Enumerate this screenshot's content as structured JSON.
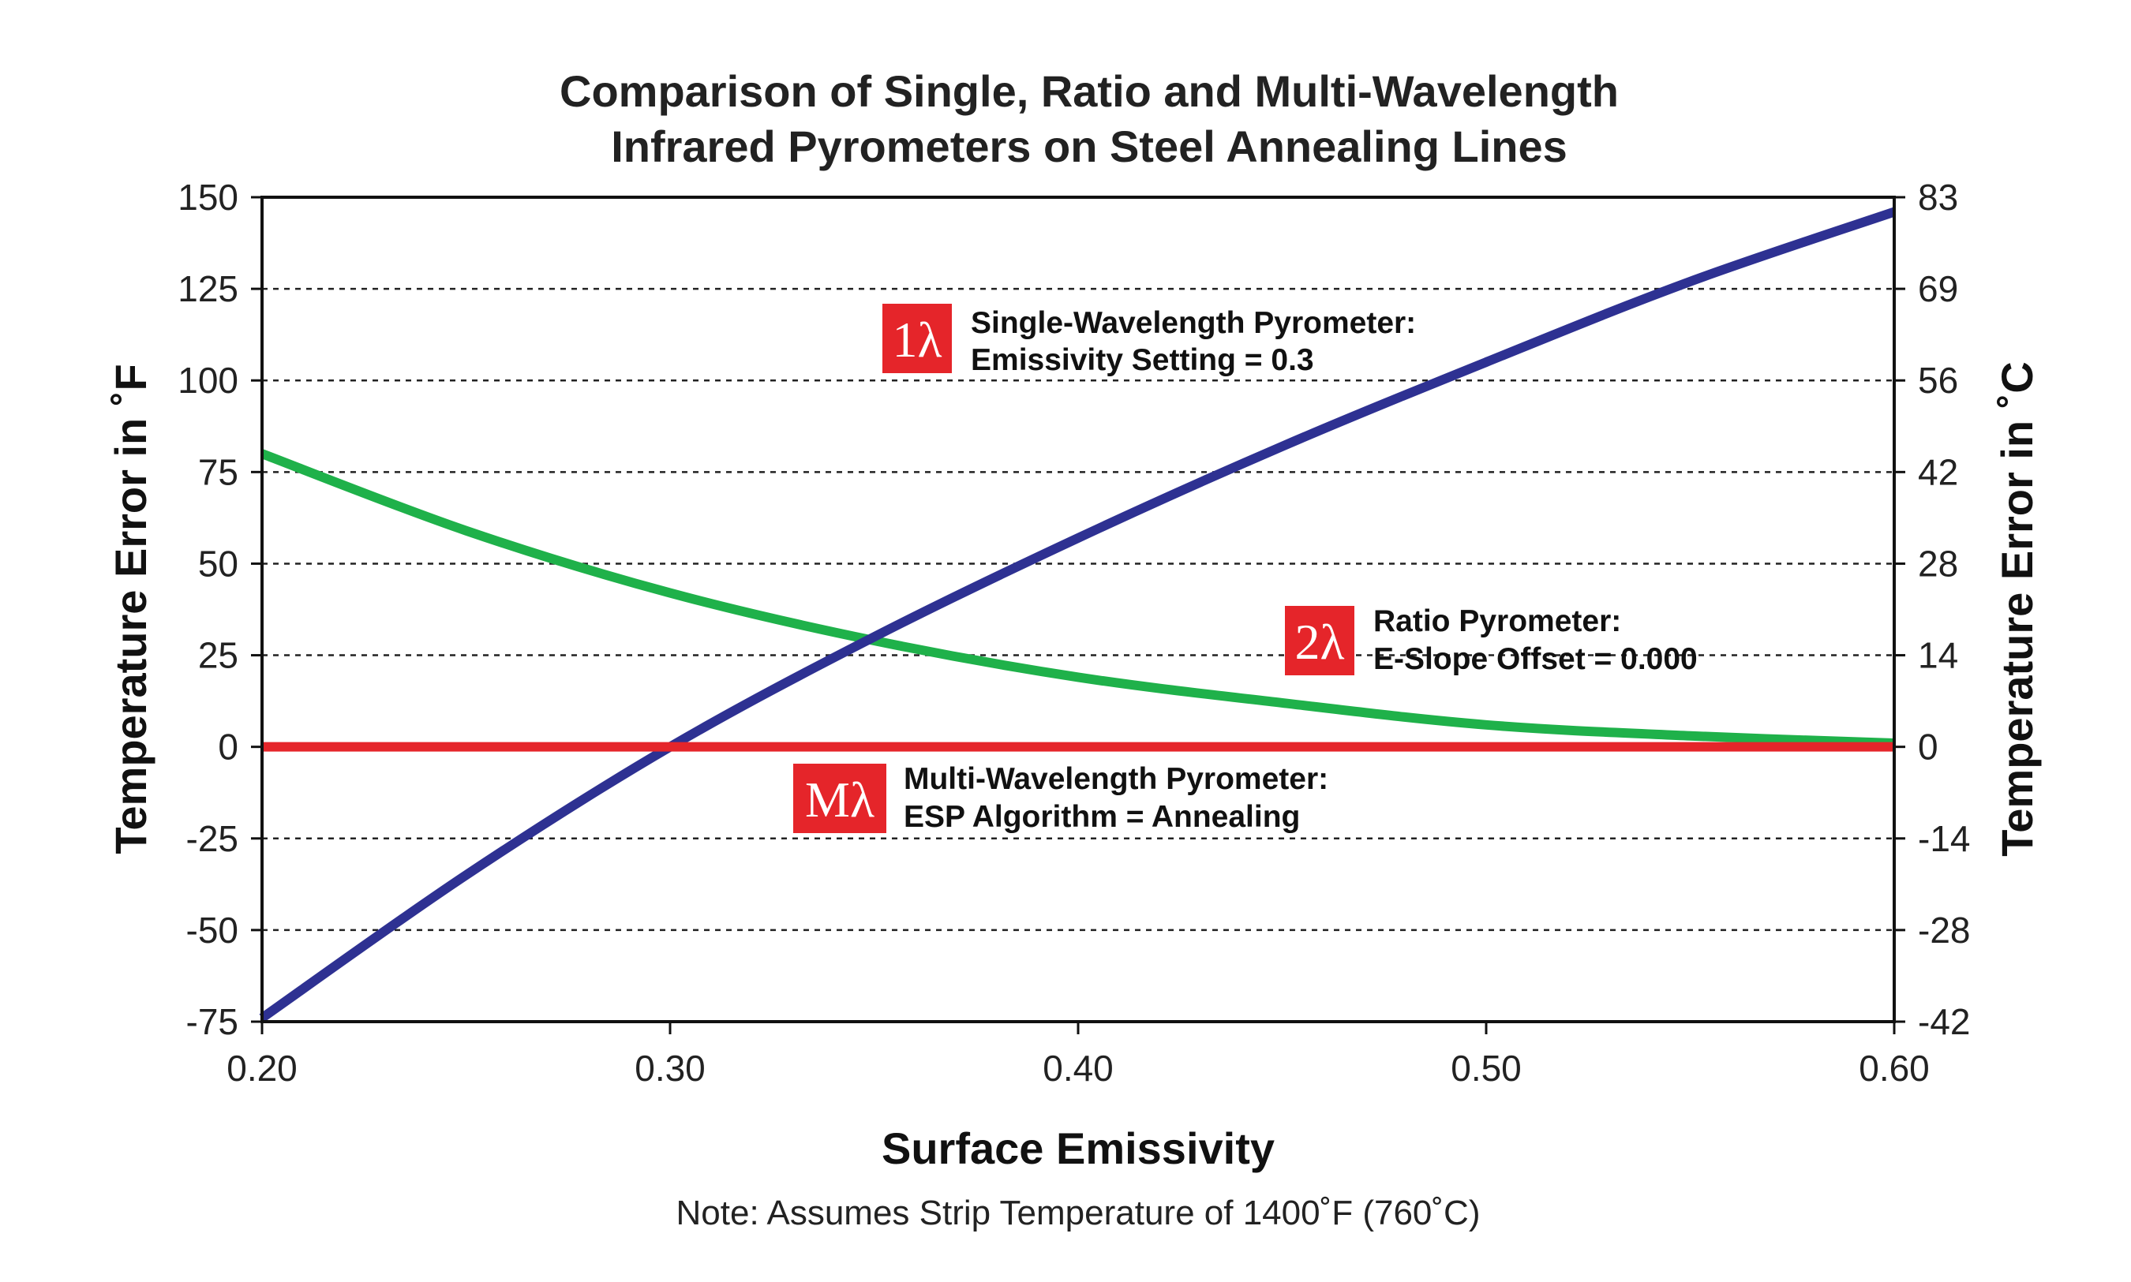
{
  "chart_data": {
    "type": "line",
    "title_lines": [
      "Comparison of Single, Ratio and Multi-Wavelength",
      "Infrared Pyrometers on Steel Annealing Lines"
    ],
    "xlabel": "Surface Emissivity",
    "ylabel": "Temperature Error in ˚F",
    "ylabel_right": "Temperature Error in ˚C",
    "note": "Note: Assumes Strip Temperature of 1400˚F (760˚C)",
    "xlim": [
      0.2,
      0.6
    ],
    "ylim": [
      -75,
      150
    ],
    "x_ticks": [
      "0.20",
      "0.30",
      "0.40",
      "0.50",
      "0.60"
    ],
    "y_ticks_left": [
      "150",
      "125",
      "100",
      "75",
      "50",
      "25",
      "0",
      "-25",
      "-50",
      "-75"
    ],
    "y_ticks_right": [
      "83",
      "69",
      "56",
      "42",
      "28",
      "14",
      "0",
      "-14",
      "-28",
      "-42"
    ],
    "grid": "horizontal-dashed",
    "series": [
      {
        "name": "Single-Wavelength Pyrometer",
        "color": "#2e3192",
        "x": [
          0.2,
          0.25,
          0.3,
          0.35,
          0.4,
          0.45,
          0.5,
          0.55,
          0.6
        ],
        "y": [
          -74,
          -35,
          0,
          30,
          57,
          82,
          105,
          127,
          146
        ]
      },
      {
        "name": "Ratio Pyrometer",
        "color": "#1fb14a",
        "x": [
          0.2,
          0.25,
          0.3,
          0.35,
          0.4,
          0.45,
          0.5,
          0.55,
          0.6
        ],
        "y": [
          80,
          59,
          42,
          29,
          19,
          12,
          6,
          3,
          1
        ]
      },
      {
        "name": "Multi-Wavelength Pyrometer",
        "color": "#e5252a",
        "x": [
          0.2,
          0.6
        ],
        "y": [
          0,
          0
        ]
      }
    ],
    "annotations": [
      {
        "badge": "1λ",
        "line1": "Single-Wavelength Pyrometer:",
        "line2": "Emissivity Setting = 0.3"
      },
      {
        "badge": "2λ",
        "line1": "Ratio Pyrometer:",
        "line2": "E-Slope Offset = 0.000"
      },
      {
        "badge": "Mλ",
        "line1": "Multi-Wavelength Pyrometer:",
        "line2": "ESP Algorithm = Annealing"
      }
    ],
    "badge_color": "#e5252a"
  }
}
